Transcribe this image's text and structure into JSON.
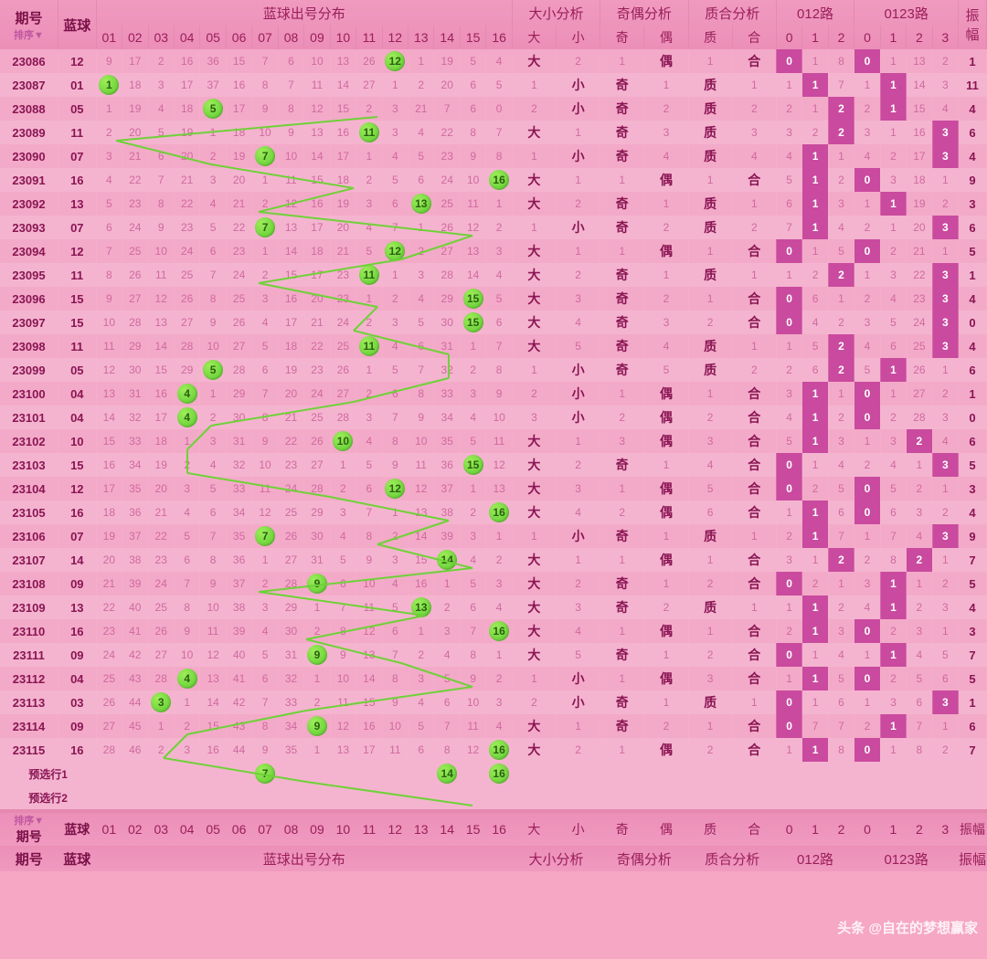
{
  "columns": {
    "period": "期号",
    "sort": "排序▼",
    "blueBall": "蓝球",
    "distribution": "蓝球出号分布",
    "sizeAnalysis": "大小分析",
    "parityAnalysis": "奇偶分析",
    "primeAnalysis": "质合分析",
    "route012": "012路",
    "route0123": "0123路",
    "amplitude": "振幅",
    "big": "大",
    "small": "小",
    "odd": "奇",
    "even": "偶",
    "prime": "质",
    "comp": "合",
    "nums": [
      "01",
      "02",
      "03",
      "04",
      "05",
      "06",
      "07",
      "08",
      "09",
      "10",
      "11",
      "12",
      "13",
      "14",
      "15",
      "16"
    ],
    "r012": [
      "0",
      "1",
      "2"
    ],
    "r0123": [
      "0",
      "1",
      "2",
      "3"
    ]
  },
  "predictLabels": [
    "预选行1",
    "预选行2"
  ],
  "predictCircles": [
    [
      7,
      14,
      16
    ],
    []
  ],
  "watermark": "头条 @自在的梦想赢家",
  "colors": {
    "bg": "#f5a7c4",
    "header": "#f09ac0",
    "rowA": "#f4b4cf",
    "rowB": "#f3aac8",
    "circle": "#5ac92e",
    "hl": "#c94a9e",
    "text": "#8a1554",
    "faded": "#d069a0"
  },
  "rows": [
    {
      "p": "23086",
      "b": "12",
      "miss": [
        9,
        17,
        2,
        16,
        36,
        15,
        7,
        6,
        10,
        13,
        26,
        0,
        1,
        19,
        5,
        4
      ],
      "size": "大",
      "sm": 2,
      "odd": 1,
      "ev": "偶",
      "pr": 1,
      "co": "合",
      "r012": [
        0,
        1,
        8
      ],
      "r0123": [
        0,
        1,
        13,
        2
      ],
      "hl012": 0,
      "hl0123": 0,
      "amp": 1
    },
    {
      "p": "23087",
      "b": "01",
      "miss": [
        0,
        18,
        3,
        17,
        37,
        16,
        8,
        7,
        11,
        14,
        27,
        1,
        2,
        20,
        6,
        5
      ],
      "size": 1,
      "sm": "小",
      "odd": "奇",
      "ev": 1,
      "pr": "质",
      "co": 1,
      "r012": [
        1,
        1,
        7
      ],
      "r0123": [
        1,
        1,
        14,
        3
      ],
      "hl012": 1,
      "hl0123": 1,
      "amp": 11
    },
    {
      "p": "23088",
      "b": "05",
      "miss": [
        1,
        19,
        4,
        18,
        0,
        17,
        9,
        8,
        12,
        15,
        2,
        3,
        21,
        7,
        6,
        0
      ],
      "size": 2,
      "sm": "小",
      "odd": "奇",
      "ev": 2,
      "pr": "质",
      "co": 2,
      "r012": [
        2,
        1,
        2
      ],
      "r0123": [
        2,
        1,
        15,
        4
      ],
      "hl012": 2,
      "hl0123": 1,
      "amp": 4
    },
    {
      "p": "23089",
      "b": "11",
      "miss": [
        2,
        20,
        5,
        19,
        1,
        18,
        10,
        9,
        13,
        16,
        0,
        3,
        4,
        22,
        8,
        7
      ],
      "size": "大",
      "sm": 1,
      "odd": "奇",
      "ev": 3,
      "pr": "质",
      "co": 3,
      "r012": [
        3,
        2,
        2
      ],
      "r0123": [
        3,
        1,
        16,
        3
      ],
      "hl012": 2,
      "hl0123": 3,
      "amp": 6
    },
    {
      "p": "23090",
      "b": "07",
      "miss": [
        3,
        21,
        6,
        20,
        2,
        19,
        0,
        10,
        14,
        17,
        1,
        4,
        5,
        23,
        9,
        8
      ],
      "size": 1,
      "sm": "小",
      "odd": "奇",
      "ev": 4,
      "pr": "质",
      "co": 4,
      "r012": [
        4,
        1,
        1
      ],
      "r0123": [
        4,
        2,
        17,
        3
      ],
      "hl012": 1,
      "hl0123": 3,
      "amp": 4
    },
    {
      "p": "23091",
      "b": "16",
      "miss": [
        4,
        22,
        7,
        21,
        3,
        20,
        1,
        11,
        15,
        18,
        2,
        5,
        6,
        24,
        10,
        0
      ],
      "size": "大",
      "sm": 1,
      "odd": 1,
      "ev": "偶",
      "pr": 1,
      "co": "合",
      "r012": [
        5,
        1,
        2
      ],
      "r0123": [
        0,
        3,
        18,
        1
      ],
      "hl012": 1,
      "hl0123": 0,
      "amp": 9
    },
    {
      "p": "23092",
      "b": "13",
      "miss": [
        5,
        23,
        8,
        22,
        4,
        21,
        2,
        12,
        16,
        19,
        3,
        6,
        0,
        25,
        11,
        1
      ],
      "size": "大",
      "sm": 2,
      "odd": "奇",
      "ev": 1,
      "pr": "质",
      "co": 1,
      "r012": [
        6,
        1,
        3
      ],
      "r0123": [
        1,
        1,
        19,
        2
      ],
      "hl012": 1,
      "hl0123": 1,
      "amp": 3
    },
    {
      "p": "23093",
      "b": "07",
      "miss": [
        6,
        24,
        9,
        23,
        5,
        22,
        0,
        13,
        17,
        20,
        4,
        7,
        1,
        26,
        12,
        2
      ],
      "size": 1,
      "sm": "小",
      "odd": "奇",
      "ev": 2,
      "pr": "质",
      "co": 2,
      "r012": [
        7,
        1,
        4
      ],
      "r0123": [
        2,
        1,
        20,
        3
      ],
      "hl012": 1,
      "hl0123": 3,
      "amp": 6
    },
    {
      "p": "23094",
      "b": "12",
      "miss": [
        7,
        25,
        10,
        24,
        6,
        23,
        1,
        14,
        18,
        21,
        5,
        0,
        2,
        27,
        13,
        3
      ],
      "size": "大",
      "sm": 1,
      "odd": 1,
      "ev": "偶",
      "pr": 1,
      "co": "合",
      "r012": [
        0,
        1,
        5
      ],
      "r0123": [
        0,
        2,
        21,
        1
      ],
      "hl012": 0,
      "hl0123": 0,
      "amp": 5
    },
    {
      "p": "23095",
      "b": "11",
      "miss": [
        8,
        26,
        11,
        25,
        7,
        24,
        2,
        15,
        17,
        23,
        0,
        1,
        3,
        28,
        14,
        4
      ],
      "size": "大",
      "sm": 2,
      "odd": "奇",
      "ev": 1,
      "pr": "质",
      "co": 1,
      "r012": [
        1,
        2,
        2
      ],
      "r0123": [
        1,
        3,
        22,
        3
      ],
      "hl012": 2,
      "hl0123": 3,
      "amp": 1
    },
    {
      "p": "23096",
      "b": "15",
      "miss": [
        9,
        27,
        12,
        26,
        8,
        25,
        3,
        16,
        20,
        23,
        1,
        2,
        4,
        29,
        0,
        5
      ],
      "size": "大",
      "sm": 3,
      "odd": "奇",
      "ev": 2,
      "pr": 1,
      "co": "合",
      "r012": [
        0,
        6,
        1
      ],
      "r0123": [
        2,
        4,
        23,
        3
      ],
      "hl012": 0,
      "hl0123": 3,
      "amp": 4
    },
    {
      "p": "23097",
      "b": "15",
      "miss": [
        10,
        28,
        13,
        27,
        9,
        26,
        4,
        17,
        21,
        24,
        2,
        3,
        5,
        30,
        0,
        6
      ],
      "size": "大",
      "sm": 4,
      "odd": "奇",
      "ev": 3,
      "pr": 2,
      "co": "合",
      "r012": [
        0,
        4,
        2
      ],
      "r0123": [
        3,
        5,
        24,
        3
      ],
      "hl012": 0,
      "hl0123": 3,
      "amp": 0
    },
    {
      "p": "23098",
      "b": "11",
      "miss": [
        11,
        29,
        14,
        28,
        10,
        27,
        5,
        18,
        22,
        25,
        0,
        4,
        6,
        31,
        1,
        7
      ],
      "size": "大",
      "sm": 5,
      "odd": "奇",
      "ev": 4,
      "pr": "质",
      "co": 1,
      "r012": [
        1,
        5,
        2
      ],
      "r0123": [
        4,
        6,
        25,
        3
      ],
      "hl012": 2,
      "hl0123": 3,
      "amp": 4
    },
    {
      "p": "23099",
      "b": "05",
      "miss": [
        12,
        30,
        15,
        29,
        0,
        28,
        6,
        19,
        23,
        26,
        1,
        5,
        7,
        32,
        2,
        8
      ],
      "size": 1,
      "sm": "小",
      "odd": "奇",
      "ev": 5,
      "pr": "质",
      "co": 2,
      "r012": [
        2,
        6,
        2
      ],
      "r0123": [
        5,
        1,
        26,
        1
      ],
      "hl012": 2,
      "hl0123": 1,
      "amp": 6
    },
    {
      "p": "23100",
      "b": "04",
      "miss": [
        13,
        31,
        16,
        0,
        1,
        29,
        7,
        20,
        24,
        27,
        2,
        6,
        8,
        33,
        3,
        9
      ],
      "size": 2,
      "sm": "小",
      "odd": 1,
      "ev": "偶",
      "pr": 1,
      "co": "合",
      "r012": [
        3,
        1,
        1
      ],
      "r0123": [
        0,
        1,
        27,
        2
      ],
      "hl012": 1,
      "hl0123": 0,
      "amp": 1
    },
    {
      "p": "23101",
      "b": "04",
      "miss": [
        14,
        32,
        17,
        0,
        2,
        30,
        8,
        21,
        25,
        28,
        3,
        7,
        9,
        34,
        4,
        10
      ],
      "size": 3,
      "sm": "小",
      "odd": 2,
      "ev": "偶",
      "pr": 2,
      "co": "合",
      "r012": [
        4,
        1,
        2
      ],
      "r0123": [
        0,
        2,
        28,
        3
      ],
      "hl012": 1,
      "hl0123": 0,
      "amp": 0
    },
    {
      "p": "23102",
      "b": "10",
      "miss": [
        15,
        33,
        18,
        1,
        3,
        31,
        9,
        22,
        26,
        0,
        4,
        8,
        10,
        35,
        5,
        11
      ],
      "size": "大",
      "sm": 1,
      "odd": 3,
      "ev": "偶",
      "pr": 3,
      "co": "合",
      "r012": [
        5,
        1,
        3
      ],
      "r0123": [
        1,
        3,
        2,
        4
      ],
      "hl012": 1,
      "hl0123": 2,
      "amp": 6
    },
    {
      "p": "23103",
      "b": "15",
      "miss": [
        16,
        34,
        19,
        2,
        4,
        32,
        10,
        23,
        27,
        1,
        5,
        9,
        11,
        36,
        0,
        12
      ],
      "size": "大",
      "sm": 2,
      "odd": "奇",
      "ev": 1,
      "pr": 4,
      "co": "合",
      "r012": [
        0,
        1,
        4
      ],
      "r0123": [
        2,
        4,
        1,
        3
      ],
      "hl012": 0,
      "hl0123": 3,
      "amp": 5
    },
    {
      "p": "23104",
      "b": "12",
      "miss": [
        17,
        35,
        20,
        3,
        5,
        33,
        11,
        24,
        28,
        2,
        6,
        0,
        12,
        37,
        1,
        13
      ],
      "size": "大",
      "sm": 3,
      "odd": 1,
      "ev": "偶",
      "pr": 5,
      "co": "合",
      "r012": [
        0,
        2,
        5
      ],
      "r0123": [
        0,
        5,
        2,
        1
      ],
      "hl012": 0,
      "hl0123": 0,
      "amp": 3
    },
    {
      "p": "23105",
      "b": "16",
      "miss": [
        18,
        36,
        21,
        4,
        6,
        34,
        12,
        25,
        29,
        3,
        7,
        1,
        13,
        38,
        2,
        0
      ],
      "size": "大",
      "sm": 4,
      "odd": 2,
      "ev": "偶",
      "pr": 6,
      "co": "合",
      "r012": [
        1,
        1,
        6
      ],
      "r0123": [
        0,
        6,
        3,
        2
      ],
      "hl012": 1,
      "hl0123": 0,
      "amp": 4
    },
    {
      "p": "23106",
      "b": "07",
      "miss": [
        19,
        37,
        22,
        5,
        7,
        35,
        0,
        26,
        30,
        4,
        8,
        2,
        14,
        39,
        3,
        1
      ],
      "size": 1,
      "sm": "小",
      "odd": "奇",
      "ev": 1,
      "pr": "质",
      "co": 1,
      "r012": [
        2,
        1,
        7
      ],
      "r0123": [
        1,
        7,
        4,
        3
      ],
      "hl012": 1,
      "hl0123": 3,
      "amp": 9
    },
    {
      "p": "23107",
      "b": "14",
      "miss": [
        20,
        38,
        23,
        6,
        8,
        36,
        1,
        27,
        31,
        5,
        9,
        3,
        15,
        0,
        4,
        2
      ],
      "size": "大",
      "sm": 1,
      "odd": 1,
      "ev": "偶",
      "pr": 1,
      "co": "合",
      "r012": [
        3,
        1,
        2
      ],
      "r0123": [
        2,
        8,
        2,
        1
      ],
      "hl012": 2,
      "hl0123": 2,
      "amp": 7
    },
    {
      "p": "23108",
      "b": "09",
      "miss": [
        21,
        39,
        24,
        7,
        9,
        37,
        2,
        28,
        0,
        6,
        10,
        4,
        16,
        1,
        5,
        3
      ],
      "size": "大",
      "sm": 2,
      "odd": "奇",
      "ev": 1,
      "pr": 2,
      "co": "合",
      "r012": [
        0,
        2,
        1
      ],
      "r0123": [
        3,
        1,
        1,
        2
      ],
      "hl012": 0,
      "hl0123": 1,
      "amp": 5
    },
    {
      "p": "23109",
      "b": "13",
      "miss": [
        22,
        40,
        25,
        8,
        10,
        38,
        3,
        29,
        1,
        7,
        11,
        5,
        0,
        2,
        6,
        4
      ],
      "size": "大",
      "sm": 3,
      "odd": "奇",
      "ev": 2,
      "pr": "质",
      "co": 1,
      "r012": [
        1,
        1,
        2
      ],
      "r0123": [
        4,
        1,
        2,
        3
      ],
      "hl012": 1,
      "hl0123": 1,
      "amp": 4
    },
    {
      "p": "23110",
      "b": "16",
      "miss": [
        23,
        41,
        26,
        9,
        11,
        39,
        4,
        30,
        2,
        8,
        12,
        6,
        1,
        3,
        7,
        0
      ],
      "size": "大",
      "sm": 4,
      "odd": 1,
      "ev": "偶",
      "pr": 1,
      "co": "合",
      "r012": [
        2,
        1,
        3
      ],
      "r0123": [
        0,
        2,
        3,
        1
      ],
      "hl012": 1,
      "hl0123": 0,
      "amp": 3
    },
    {
      "p": "23111",
      "b": "09",
      "miss": [
        24,
        42,
        27,
        10,
        12,
        40,
        5,
        31,
        0,
        9,
        13,
        7,
        2,
        4,
        8,
        1
      ],
      "size": "大",
      "sm": 5,
      "odd": "奇",
      "ev": 1,
      "pr": 2,
      "co": "合",
      "r012": [
        0,
        1,
        4
      ],
      "r0123": [
        1,
        1,
        4,
        5
      ],
      "hl012": 0,
      "hl0123": 1,
      "amp": 7
    },
    {
      "p": "23112",
      "b": "04",
      "miss": [
        25,
        43,
        28,
        0,
        13,
        41,
        6,
        32,
        1,
        10,
        14,
        8,
        3,
        5,
        9,
        2
      ],
      "size": 1,
      "sm": "小",
      "odd": 1,
      "ev": "偶",
      "pr": 3,
      "co": "合",
      "r012": [
        1,
        1,
        5
      ],
      "r0123": [
        0,
        2,
        5,
        6
      ],
      "hl012": 1,
      "hl0123": 0,
      "amp": 5
    },
    {
      "p": "23113",
      "b": "03",
      "miss": [
        26,
        44,
        0,
        1,
        14,
        42,
        7,
        33,
        2,
        11,
        15,
        9,
        4,
        6,
        10,
        3
      ],
      "size": 2,
      "sm": "小",
      "odd": "奇",
      "ev": 1,
      "pr": "质",
      "co": 1,
      "r012": [
        0,
        1,
        6
      ],
      "r0123": [
        1,
        3,
        6,
        3
      ],
      "hl012": 0,
      "hl0123": 3,
      "amp": 1
    },
    {
      "p": "23114",
      "b": "09",
      "miss": [
        27,
        45,
        1,
        2,
        15,
        43,
        8,
        34,
        0,
        12,
        16,
        10,
        5,
        7,
        11,
        4
      ],
      "size": "大",
      "sm": 1,
      "odd": "奇",
      "ev": 2,
      "pr": 1,
      "co": "合",
      "r012": [
        0,
        7,
        7
      ],
      "r0123": [
        2,
        1,
        7,
        1
      ],
      "hl012": 0,
      "hl0123": 1,
      "amp": 6
    },
    {
      "p": "23115",
      "b": "16",
      "miss": [
        28,
        46,
        2,
        3,
        16,
        44,
        9,
        35,
        1,
        13,
        17,
        11,
        6,
        8,
        12,
        0
      ],
      "size": "大",
      "sm": 2,
      "odd": 1,
      "ev": "偶",
      "pr": 2,
      "co": "合",
      "r012": [
        1,
        1,
        8
      ],
      "r0123": [
        0,
        1,
        8,
        2
      ],
      "hl012": 1,
      "hl0123": 0,
      "amp": 7
    }
  ]
}
